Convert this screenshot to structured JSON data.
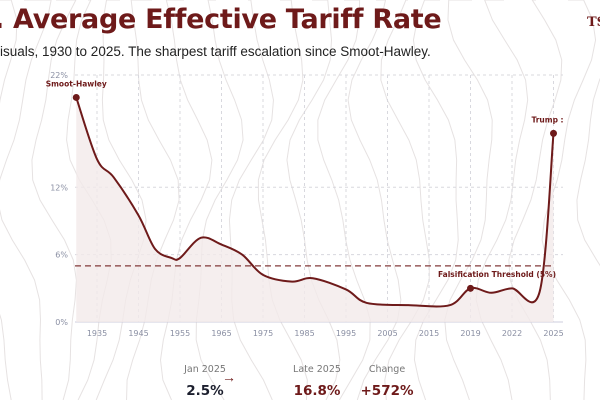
{
  "header": {
    "title": ". Average Effective Tariff Rate",
    "subtitle": "isuals, 1930 to 2025. The sharpest tariff escalation since Smoot-Hawley.",
    "brand": "TS"
  },
  "colors": {
    "accent": "#6e1a1a",
    "grid": "#d8d8de",
    "fill": "#f3eaea",
    "tick": "#8a8fa3"
  },
  "chart_data": {
    "type": "line",
    "title": "Average Effective Tariff Rate",
    "xlabel": "",
    "ylabel": "",
    "ylim": [
      0,
      22
    ],
    "y_ticks": [
      "0%",
      "6%",
      "12%",
      "22%"
    ],
    "y_tick_values": [
      0,
      6,
      12,
      22
    ],
    "x_ticks": [
      "1935",
      "1945",
      "1955",
      "1965",
      "1975",
      "1985",
      "1995",
      "2005",
      "2015",
      "2019",
      "2022",
      "2025"
    ],
    "grid": true,
    "series": [
      {
        "name": "Average effective tariff rate (%)",
        "x": [
          1930,
          1935,
          1939,
          1945,
          1949,
          1953,
          1955,
          1960,
          1965,
          1970,
          1975,
          1982,
          1987,
          1995,
          2000,
          2010,
          2017,
          2019,
          2020.5,
          2022,
          2024,
          2025
        ],
        "y": [
          20,
          14.5,
          12.9,
          9.5,
          6.5,
          5.7,
          5.7,
          7.5,
          6.9,
          6.0,
          4.2,
          3.6,
          3.9,
          2.9,
          1.7,
          1.5,
          1.5,
          3.0,
          2.6,
          3.0,
          2.7,
          16.8
        ]
      }
    ],
    "threshold": {
      "value": 5,
      "label": "Falsification Threshold (5%)"
    },
    "annotations": [
      {
        "x": 1930,
        "y": 20,
        "label": "Smoot-Hawley"
      },
      {
        "x": 2019,
        "y": 3.0,
        "label": ""
      },
      {
        "x": 2025,
        "y": 16.8,
        "label": "Trump :"
      }
    ]
  },
  "stats": [
    {
      "label": "Jan 2025",
      "value": "2.5%"
    },
    {
      "label": "Late 2025",
      "value": "16.8%"
    },
    {
      "label": "Change",
      "value": "+572%"
    }
  ],
  "arrow": "→"
}
